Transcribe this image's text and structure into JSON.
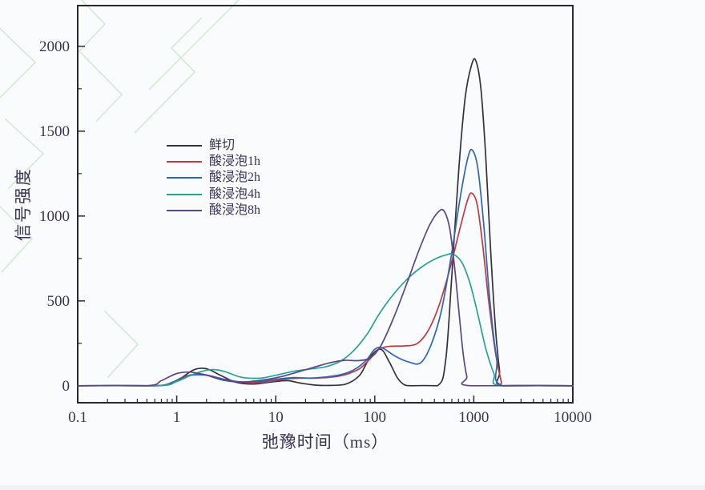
{
  "colors": {
    "axis": "#2b2535",
    "tick_label": "#3a3254",
    "watermark": "#cfe9cf",
    "background": "#fafbfd"
  },
  "chart_data": {
    "type": "line",
    "title": "",
    "xlabel": "弛豫时间（ms）",
    "ylabel": "信号强度",
    "x_scale": "log",
    "xlim": [
      0.1,
      10000
    ],
    "ylim": [
      -100,
      2240
    ],
    "x_ticks": [
      0.1,
      1,
      10,
      100,
      1000,
      10000
    ],
    "x_tick_labels": [
      "0.1",
      "1",
      "10",
      "100",
      "1000",
      "10000"
    ],
    "y_ticks": [
      0,
      500,
      1000,
      1500,
      2000
    ],
    "y_minor_step": 250,
    "grid": false,
    "legend_position": "inside-upper-left",
    "series": [
      {
        "name": "鲜切",
        "color": "#35303e",
        "points": [
          [
            0.1,
            0
          ],
          [
            0.55,
            0
          ],
          [
            0.8,
            8
          ],
          [
            1.1,
            45
          ],
          [
            1.5,
            95
          ],
          [
            2,
            100
          ],
          [
            2.8,
            60
          ],
          [
            4,
            20
          ],
          [
            6,
            10
          ],
          [
            9,
            22
          ],
          [
            13,
            30
          ],
          [
            18,
            15
          ],
          [
            25,
            4
          ],
          [
            35,
            2
          ],
          [
            50,
            8
          ],
          [
            70,
            60
          ],
          [
            90,
            170
          ],
          [
            115,
            215
          ],
          [
            140,
            140
          ],
          [
            170,
            45
          ],
          [
            200,
            5
          ],
          [
            230,
            0
          ],
          [
            430,
            0
          ],
          [
            520,
            150
          ],
          [
            600,
            650
          ],
          [
            700,
            1250
          ],
          [
            820,
            1700
          ],
          [
            950,
            1890
          ],
          [
            1050,
            1915
          ],
          [
            1180,
            1750
          ],
          [
            1320,
            1350
          ],
          [
            1480,
            800
          ],
          [
            1650,
            350
          ],
          [
            1820,
            90
          ],
          [
            1960,
            0
          ],
          [
            10000,
            0
          ]
        ]
      },
      {
        "name": "酸浸泡1h",
        "color": "#c2383f",
        "points": [
          [
            0.1,
            0
          ],
          [
            0.6,
            0
          ],
          [
            0.9,
            20
          ],
          [
            1.3,
            60
          ],
          [
            1.8,
            68
          ],
          [
            2.5,
            50
          ],
          [
            3.5,
            28
          ],
          [
            5.5,
            18
          ],
          [
            8,
            22
          ],
          [
            12,
            38
          ],
          [
            18,
            45
          ],
          [
            26,
            45
          ],
          [
            38,
            52
          ],
          [
            52,
            68
          ],
          [
            70,
            100
          ],
          [
            90,
            160
          ],
          [
            110,
            215
          ],
          [
            140,
            232
          ],
          [
            200,
            235
          ],
          [
            270,
            250
          ],
          [
            350,
            330
          ],
          [
            450,
            480
          ],
          [
            580,
            700
          ],
          [
            720,
            920
          ],
          [
            860,
            1090
          ],
          [
            950,
            1135
          ],
          [
            1080,
            1070
          ],
          [
            1230,
            830
          ],
          [
            1420,
            490
          ],
          [
            1650,
            200
          ],
          [
            1900,
            20
          ],
          [
            1980,
            0
          ],
          [
            10000,
            0
          ]
        ]
      },
      {
        "name": "酸浸泡2h",
        "color": "#2d66b4",
        "points": [
          [
            0.1,
            0
          ],
          [
            0.6,
            0
          ],
          [
            0.95,
            25
          ],
          [
            1.4,
            62
          ],
          [
            2,
            62
          ],
          [
            2.9,
            40
          ],
          [
            4.5,
            22
          ],
          [
            7,
            25
          ],
          [
            10,
            38
          ],
          [
            15,
            48
          ],
          [
            22,
            45
          ],
          [
            32,
            52
          ],
          [
            45,
            65
          ],
          [
            62,
            95
          ],
          [
            82,
            150
          ],
          [
            100,
            215
          ],
          [
            120,
            222
          ],
          [
            160,
            175
          ],
          [
            220,
            140
          ],
          [
            290,
            135
          ],
          [
            370,
            240
          ],
          [
            470,
            440
          ],
          [
            590,
            760
          ],
          [
            720,
            1090
          ],
          [
            860,
            1330
          ],
          [
            960,
            1390
          ],
          [
            1100,
            1280
          ],
          [
            1260,
            950
          ],
          [
            1450,
            510
          ],
          [
            1700,
            160
          ],
          [
            1950,
            0
          ],
          [
            10000,
            0
          ]
        ]
      },
      {
        "name": "酸浸泡4h",
        "color": "#27a295",
        "points": [
          [
            0.1,
            0
          ],
          [
            0.65,
            0
          ],
          [
            1,
            25
          ],
          [
            1.5,
            70
          ],
          [
            2.2,
            95
          ],
          [
            3,
            85
          ],
          [
            4.5,
            50
          ],
          [
            7,
            45
          ],
          [
            10,
            62
          ],
          [
            15,
            85
          ],
          [
            22,
            98
          ],
          [
            32,
            112
          ],
          [
            45,
            145
          ],
          [
            62,
            210
          ],
          [
            85,
            310
          ],
          [
            110,
            420
          ],
          [
            150,
            530
          ],
          [
            210,
            625
          ],
          [
            290,
            695
          ],
          [
            400,
            745
          ],
          [
            520,
            770
          ],
          [
            620,
            775
          ],
          [
            760,
            725
          ],
          [
            920,
            600
          ],
          [
            1100,
            420
          ],
          [
            1320,
            220
          ],
          [
            1600,
            70
          ],
          [
            1850,
            0
          ],
          [
            10000,
            0
          ]
        ]
      },
      {
        "name": "酸浸泡8h",
        "color": "#5a4688",
        "points": [
          [
            0.1,
            0
          ],
          [
            0.5,
            0
          ],
          [
            0.7,
            30
          ],
          [
            1,
            72
          ],
          [
            1.4,
            80
          ],
          [
            2,
            62
          ],
          [
            3,
            32
          ],
          [
            4.5,
            22
          ],
          [
            7,
            32
          ],
          [
            11,
            52
          ],
          [
            16,
            78
          ],
          [
            24,
            108
          ],
          [
            35,
            135
          ],
          [
            50,
            150
          ],
          [
            68,
            148
          ],
          [
            90,
            165
          ],
          [
            115,
            235
          ],
          [
            155,
            400
          ],
          [
            210,
            600
          ],
          [
            280,
            800
          ],
          [
            360,
            950
          ],
          [
            440,
            1025
          ],
          [
            500,
            1030
          ],
          [
            570,
            930
          ],
          [
            640,
            700
          ],
          [
            710,
            430
          ],
          [
            780,
            190
          ],
          [
            850,
            55
          ],
          [
            920,
            0
          ],
          [
            10000,
            0
          ]
        ]
      }
    ]
  }
}
